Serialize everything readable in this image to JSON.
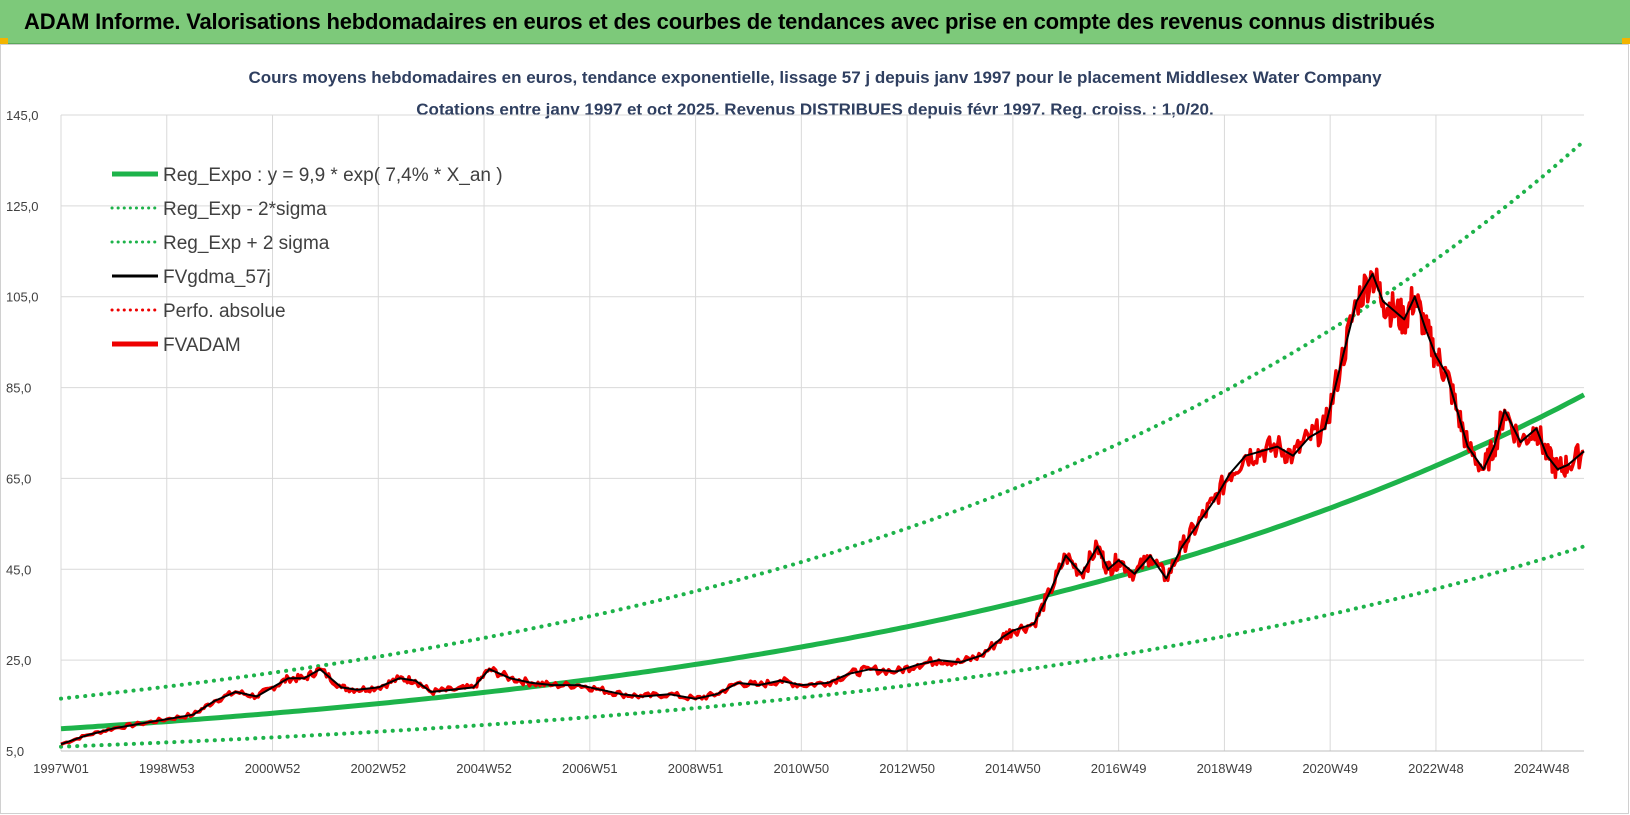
{
  "header": {
    "title": "ADAM Informe. Valorisations hebdomadaires en euros et des courbes de tendances avec prise en compte des revenus connus distribués"
  },
  "colors": {
    "header_bg": "#7dc97a",
    "green": "#1db34a",
    "red": "#ee0000",
    "black": "#000000",
    "grid": "#d9d9d9",
    "title_text": "#2f3f60"
  },
  "chart_data": {
    "type": "line",
    "title": "Cours moyens hebdomadaires en euros, tendance exponentielle, lissage 57 j depuis janv 1997 pour le placement Middlesex Water Company",
    "subtitle": "Cotations entre janv 1997 et oct 2025. Revenus DISTRIBUES depuis févr 1997. Reg. croiss. : 1,0/20.",
    "xlabel": "",
    "ylabel": "",
    "ylim": [
      5,
      145
    ],
    "yticks": [
      "5,0",
      "25,0",
      "45,0",
      "65,0",
      "85,0",
      "105,0",
      "125,0",
      "145,0"
    ],
    "xlim": [
      1997.0,
      2025.8
    ],
    "xticks": [
      {
        "label": "1997W01",
        "x": 1997.0
      },
      {
        "label": "1998W53",
        "x": 1999.0
      },
      {
        "label": "2000W52",
        "x": 2001.0
      },
      {
        "label": "2002W52",
        "x": 2003.0
      },
      {
        "label": "2004W52",
        "x": 2005.0
      },
      {
        "label": "2006W51",
        "x": 2007.0
      },
      {
        "label": "2008W51",
        "x": 2009.0
      },
      {
        "label": "2010W50",
        "x": 2011.0
      },
      {
        "label": "2012W50",
        "x": 2013.0
      },
      {
        "label": "2014W50",
        "x": 2015.0
      },
      {
        "label": "2016W49",
        "x": 2017.0
      },
      {
        "label": "2018W49",
        "x": 2019.0
      },
      {
        "label": "2020W49",
        "x": 2021.0
      },
      {
        "label": "2022W48",
        "x": 2023.0
      },
      {
        "label": "2024W48",
        "x": 2025.0
      }
    ],
    "grid": true,
    "legend_position": "top-left",
    "legend": [
      {
        "label": "Reg_Expo : y = 9,9 * exp( 7,4% *  X_an )",
        "color": "#1db34a",
        "style": "solid-thick"
      },
      {
        "label": "Reg_Exp - 2*sigma",
        "color": "#1db34a",
        "style": "dotted"
      },
      {
        "label": "Reg_Exp + 2 sigma",
        "color": "#1db34a",
        "style": "dotted"
      },
      {
        "label": "FVgdma_57j",
        "color": "#000000",
        "style": "solid"
      },
      {
        "label": "Perfo. absolue",
        "color": "#ee0000",
        "style": "dotted"
      },
      {
        "label": "FVADAM",
        "color": "#ee0000",
        "style": "solid-thick"
      }
    ],
    "trend": {
      "a": 9.9,
      "rate": 0.074,
      "start": 1997.0
    },
    "band_lower_factor": 0.6,
    "band_upper_factor": 1.67,
    "series": [
      {
        "name": "FVADAM",
        "x": [
          1997.0,
          1997.5,
          1998.0,
          1998.5,
          1999.0,
          1999.5,
          1999.9,
          2000.3,
          2000.7,
          2001.0,
          2001.3,
          2001.6,
          2001.9,
          2002.3,
          2002.6,
          2003.0,
          2003.4,
          2003.7,
          2004.0,
          2004.4,
          2004.8,
          2005.1,
          2005.5,
          2005.9,
          2006.3,
          2006.8,
          2007.2,
          2007.6,
          2008.0,
          2008.5,
          2009.0,
          2009.4,
          2009.8,
          2010.2,
          2010.6,
          2011.0,
          2011.5,
          2011.9,
          2012.3,
          2012.8,
          2013.2,
          2013.6,
          2014.0,
          2014.4,
          2014.8,
          2015.0,
          2015.4,
          2015.7,
          2016.0,
          2016.3,
          2016.6,
          2016.8,
          2017.0,
          2017.3,
          2017.6,
          2017.9,
          2018.2,
          2018.5,
          2018.8,
          2019.1,
          2019.4,
          2019.7,
          2020.0,
          2020.3,
          2020.6,
          2020.9,
          2021.2,
          2021.5,
          2021.8,
          2022.0,
          2022.2,
          2022.4,
          2022.6,
          2022.8,
          2023.0,
          2023.2,
          2023.4,
          2023.6,
          2023.9,
          2024.1,
          2024.3,
          2024.6,
          2024.9,
          2025.1,
          2025.3,
          2025.5,
          2025.8
        ],
        "y": [
          6.5,
          8.5,
          10.0,
          11.0,
          12.0,
          13.0,
          16.0,
          18.0,
          17.0,
          19.0,
          21.0,
          21.0,
          23.0,
          19.0,
          18.5,
          19.0,
          21.0,
          20.5,
          18.0,
          18.5,
          19.0,
          23.0,
          21.0,
          20.0,
          19.5,
          19.5,
          18.5,
          17.5,
          17.0,
          17.5,
          16.5,
          17.5,
          20.0,
          19.5,
          20.5,
          19.5,
          20.0,
          22.0,
          23.0,
          22.5,
          24.0,
          25.0,
          24.5,
          26.0,
          30.0,
          31.5,
          33.0,
          40.0,
          48.0,
          44.0,
          50.0,
          45.0,
          47.0,
          44.0,
          48.0,
          43.0,
          50.0,
          55.0,
          60.0,
          66.0,
          70.0,
          71.0,
          72.0,
          70.0,
          74.0,
          76.0,
          90.0,
          104.0,
          110.0,
          104.0,
          102.0,
          100.0,
          105.0,
          98.0,
          92.0,
          88.0,
          80.0,
          72.0,
          67.0,
          72.0,
          80.0,
          73.0,
          76.0,
          70.0,
          67.0,
          68.0,
          71.0
        ]
      },
      {
        "name": "FVgdma_57j",
        "x": [
          1997.0,
          1997.5,
          1998.0,
          1998.5,
          1999.0,
          1999.5,
          1999.9,
          2000.3,
          2000.7,
          2001.0,
          2001.3,
          2001.6,
          2001.9,
          2002.3,
          2002.6,
          2003.0,
          2003.4,
          2003.7,
          2004.0,
          2004.4,
          2004.8,
          2005.1,
          2005.5,
          2005.9,
          2006.3,
          2006.8,
          2007.2,
          2007.6,
          2008.0,
          2008.5,
          2009.0,
          2009.4,
          2009.8,
          2010.2,
          2010.6,
          2011.0,
          2011.5,
          2011.9,
          2012.3,
          2012.8,
          2013.2,
          2013.6,
          2014.0,
          2014.4,
          2014.8,
          2015.0,
          2015.4,
          2015.7,
          2016.0,
          2016.3,
          2016.6,
          2016.8,
          2017.0,
          2017.3,
          2017.6,
          2017.9,
          2018.2,
          2018.5,
          2018.8,
          2019.1,
          2019.4,
          2019.7,
          2020.0,
          2020.3,
          2020.6,
          2020.9,
          2021.2,
          2021.5,
          2021.8,
          2022.0,
          2022.2,
          2022.4,
          2022.6,
          2022.8,
          2023.0,
          2023.2,
          2023.4,
          2023.6,
          2023.9,
          2024.1,
          2024.3,
          2024.6,
          2024.9,
          2025.1,
          2025.3,
          2025.5,
          2025.8
        ],
        "y": [
          6.5,
          8.5,
          10.0,
          11.0,
          12.0,
          13.0,
          16.0,
          18.0,
          17.0,
          19.0,
          21.0,
          21.0,
          23.0,
          19.0,
          18.5,
          19.0,
          21.0,
          20.5,
          18.0,
          18.5,
          19.0,
          23.0,
          21.0,
          20.0,
          19.5,
          19.5,
          18.5,
          17.5,
          17.0,
          17.5,
          16.5,
          17.5,
          20.0,
          19.5,
          20.5,
          19.5,
          20.0,
          22.0,
          23.0,
          22.5,
          24.0,
          25.0,
          24.5,
          26.0,
          30.0,
          31.5,
          33.0,
          40.0,
          48.0,
          44.0,
          50.0,
          45.0,
          47.0,
          44.0,
          48.0,
          43.0,
          50.0,
          55.0,
          60.0,
          66.0,
          70.0,
          71.0,
          72.0,
          70.0,
          74.0,
          76.0,
          90.0,
          104.0,
          110.0,
          104.0,
          102.0,
          100.0,
          105.0,
          98.0,
          92.0,
          88.0,
          80.0,
          72.0,
          67.0,
          72.0,
          80.0,
          73.0,
          76.0,
          70.0,
          67.0,
          68.0,
          71.0
        ]
      }
    ]
  }
}
